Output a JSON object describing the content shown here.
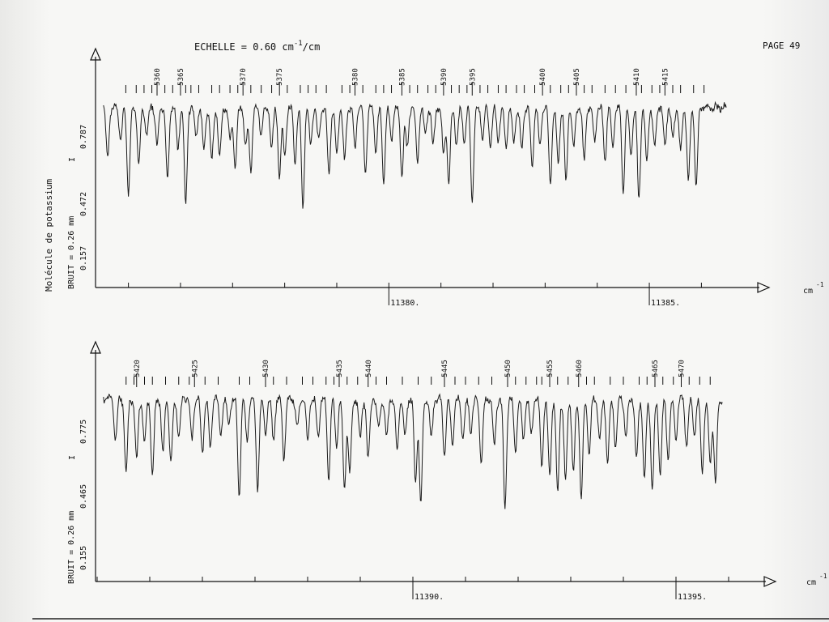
{
  "header": {
    "scale": "ECHELLE = 0.60 cm",
    "scale_sup": "-1",
    "scale_unit": "/cm",
    "page": "PAGE 49"
  },
  "side_note": "Molécule de potassium",
  "chart_data": [
    {
      "type": "line",
      "name": "panel-1",
      "ylabel": "I",
      "noise_label": "BRUIT = 0.26 mm",
      "yticks": [
        "0.157",
        "0.472",
        "0.787"
      ],
      "xlabel": "cm",
      "xlabel_sup": "-1",
      "xticks": [
        {
          "value": 11380,
          "label": "11380."
        },
        {
          "value": 11385,
          "label": "11385."
        }
      ],
      "xrange": [
        11374.4,
        11386.6
      ],
      "line_numbers": [
        {
          "label": "5360",
          "x": 11375.55
        },
        {
          "label": "5365",
          "x": 11376.0
        },
        {
          "label": "5370",
          "x": 11377.2
        },
        {
          "label": "5375",
          "x": 11377.9
        },
        {
          "label": "5380",
          "x": 11379.35
        },
        {
          "label": "5385",
          "x": 11380.25
        },
        {
          "label": "5390",
          "x": 11381.05
        },
        {
          "label": "5395",
          "x": 11381.6
        },
        {
          "label": "5400",
          "x": 11382.95
        },
        {
          "label": "5405",
          "x": 11383.6
        },
        {
          "label": "5410",
          "x": 11384.75
        },
        {
          "label": "5415",
          "x": 11385.3
        }
      ],
      "markers": [
        11374.95,
        11375.15,
        11375.3,
        11375.45,
        11375.7,
        11375.85,
        11376.1,
        11376.2,
        11376.35,
        11376.6,
        11376.75,
        11376.95,
        11377.1,
        11377.35,
        11377.55,
        11377.75,
        11378.05,
        11378.3,
        11378.45,
        11378.6,
        11378.8,
        11379.1,
        11379.25,
        11379.5,
        11379.75,
        11379.9,
        11380.05,
        11380.4,
        11380.55,
        11380.75,
        11380.9,
        11381.2,
        11381.35,
        11381.5,
        11381.75,
        11381.9,
        11382.1,
        11382.25,
        11382.45,
        11382.6,
        11382.8,
        11383.1,
        11383.3,
        11383.45,
        11383.75,
        11383.9,
        11384.15,
        11384.35,
        11384.55,
        11384.85,
        11385.05,
        11385.2,
        11385.45,
        11385.6,
        11385.85,
        11386.05
      ],
      "absorption_lines": [
        [
          11374.6,
          0.38
        ],
        [
          11374.85,
          0.25
        ],
        [
          11375.0,
          0.65
        ],
        [
          11375.2,
          0.42
        ],
        [
          11375.35,
          0.2
        ],
        [
          11375.55,
          0.28
        ],
        [
          11375.75,
          0.55
        ],
        [
          11375.95,
          0.32
        ],
        [
          11376.1,
          0.72
        ],
        [
          11376.3,
          0.22
        ],
        [
          11376.45,
          0.33
        ],
        [
          11376.6,
          0.4
        ],
        [
          11376.75,
          0.38
        ],
        [
          11376.95,
          0.25
        ],
        [
          11377.05,
          0.45
        ],
        [
          11377.25,
          0.3
        ],
        [
          11377.35,
          0.48
        ],
        [
          11377.55,
          0.2
        ],
        [
          11377.75,
          0.3
        ],
        [
          11377.9,
          0.52
        ],
        [
          11378.0,
          0.35
        ],
        [
          11378.2,
          0.42
        ],
        [
          11378.35,
          0.75
        ],
        [
          11378.5,
          0.28
        ],
        [
          11378.65,
          0.25
        ],
        [
          11378.85,
          0.5
        ],
        [
          11379.0,
          0.35
        ],
        [
          11379.15,
          0.4
        ],
        [
          11379.35,
          0.3
        ],
        [
          11379.55,
          0.48
        ],
        [
          11379.75,
          0.32
        ],
        [
          11379.9,
          0.55
        ],
        [
          11380.05,
          0.25
        ],
        [
          11380.25,
          0.5
        ],
        [
          11380.35,
          0.3
        ],
        [
          11380.55,
          0.42
        ],
        [
          11380.7,
          0.2
        ],
        [
          11380.85,
          0.28
        ],
        [
          11381.05,
          0.35
        ],
        [
          11381.15,
          0.58
        ],
        [
          11381.3,
          0.28
        ],
        [
          11381.45,
          0.25
        ],
        [
          11381.6,
          0.7
        ],
        [
          11381.8,
          0.22
        ],
        [
          11381.95,
          0.28
        ],
        [
          11382.1,
          0.25
        ],
        [
          11382.25,
          0.3
        ],
        [
          11382.4,
          0.26
        ],
        [
          11382.55,
          0.32
        ],
        [
          11382.75,
          0.45
        ],
        [
          11382.9,
          0.3
        ],
        [
          11383.1,
          0.58
        ],
        [
          11383.25,
          0.42
        ],
        [
          11383.4,
          0.55
        ],
        [
          11383.55,
          0.3
        ],
        [
          11383.75,
          0.4
        ],
        [
          11383.95,
          0.25
        ],
        [
          11384.15,
          0.4
        ],
        [
          11384.3,
          0.28
        ],
        [
          11384.5,
          0.62
        ],
        [
          11384.65,
          0.35
        ],
        [
          11384.8,
          0.68
        ],
        [
          11384.95,
          0.4
        ],
        [
          11385.1,
          0.3
        ],
        [
          11385.3,
          0.28
        ],
        [
          11385.45,
          0.22
        ],
        [
          11385.6,
          0.32
        ],
        [
          11385.75,
          0.55
        ],
        [
          11385.9,
          0.6
        ]
      ]
    },
    {
      "type": "line",
      "name": "panel-2",
      "ylabel": "I",
      "noise_label": "BRUIT = 0.26 mm",
      "yticks": [
        "0.155",
        "0.465",
        "0.775"
      ],
      "xlabel": "cm",
      "xlabel_sup": "-1",
      "xticks": [
        {
          "value": 11390,
          "label": "11390."
        },
        {
          "value": 11395,
          "label": "11395."
        }
      ],
      "xrange": [
        11384.0,
        11396.0
      ],
      "line_numbers": [
        {
          "label": "5420",
          "x": 11384.75
        },
        {
          "label": "5425",
          "x": 11385.85
        },
        {
          "label": "5430",
          "x": 11387.2
        },
        {
          "label": "5435",
          "x": 11388.6
        },
        {
          "label": "5440",
          "x": 11389.15
        },
        {
          "label": "5445",
          "x": 11390.6
        },
        {
          "label": "5450",
          "x": 11391.8
        },
        {
          "label": "5455",
          "x": 11392.6
        },
        {
          "label": "5460",
          "x": 11393.15
        },
        {
          "label": "5465",
          "x": 11394.6
        },
        {
          "label": "5470",
          "x": 11395.1
        }
      ],
      "markers": [
        11384.55,
        11384.7,
        11384.9,
        11385.05,
        11385.3,
        11385.55,
        11385.75,
        11386.05,
        11386.3,
        11386.7,
        11386.9,
        11387.35,
        11387.6,
        11387.9,
        11388.1,
        11388.35,
        11388.5,
        11388.75,
        11388.95,
        11389.3,
        11389.5,
        11389.8,
        11390.1,
        11390.35,
        11390.8,
        11391.0,
        11391.25,
        11391.5,
        11391.95,
        11392.15,
        11392.35,
        11392.45,
        11392.75,
        11392.95,
        11393.3,
        11393.45,
        11393.75,
        11394.0,
        11394.3,
        11394.45,
        11394.75,
        11394.95,
        11395.25,
        11395.45,
        11395.65
      ],
      "absorption_lines": [
        [
          11384.35,
          0.3
        ],
        [
          11384.55,
          0.55
        ],
        [
          11384.75,
          0.45
        ],
        [
          11384.9,
          0.32
        ],
        [
          11385.05,
          0.58
        ],
        [
          11385.25,
          0.4
        ],
        [
          11385.4,
          0.48
        ],
        [
          11385.55,
          0.28
        ],
        [
          11385.8,
          0.3
        ],
        [
          11386.0,
          0.4
        ],
        [
          11386.15,
          0.35
        ],
        [
          11386.35,
          0.25
        ],
        [
          11386.5,
          0.2
        ],
        [
          11386.7,
          0.72
        ],
        [
          11386.85,
          0.3
        ],
        [
          11387.05,
          0.68
        ],
        [
          11387.2,
          0.25
        ],
        [
          11387.35,
          0.3
        ],
        [
          11387.55,
          0.45
        ],
        [
          11387.8,
          0.22
        ],
        [
          11388.0,
          0.3
        ],
        [
          11388.2,
          0.28
        ],
        [
          11388.4,
          0.6
        ],
        [
          11388.55,
          0.35
        ],
        [
          11388.7,
          0.68
        ],
        [
          11388.8,
          0.55
        ],
        [
          11389.0,
          0.3
        ],
        [
          11389.15,
          0.45
        ],
        [
          11389.35,
          0.22
        ],
        [
          11389.5,
          0.3
        ],
        [
          11389.7,
          0.38
        ],
        [
          11389.85,
          0.28
        ],
        [
          11390.05,
          0.62
        ],
        [
          11390.15,
          0.78
        ],
        [
          11390.35,
          0.3
        ],
        [
          11390.6,
          0.42
        ],
        [
          11390.75,
          0.35
        ],
        [
          11390.95,
          0.3
        ],
        [
          11391.1,
          0.25
        ],
        [
          11391.3,
          0.48
        ],
        [
          11391.55,
          0.35
        ],
        [
          11391.75,
          0.82
        ],
        [
          11391.95,
          0.4
        ],
        [
          11392.1,
          0.3
        ],
        [
          11392.25,
          0.25
        ],
        [
          11392.45,
          0.5
        ],
        [
          11392.6,
          0.58
        ],
        [
          11392.75,
          0.7
        ],
        [
          11392.9,
          0.62
        ],
        [
          11393.05,
          0.55
        ],
        [
          11393.2,
          0.75
        ],
        [
          11393.35,
          0.4
        ],
        [
          11393.55,
          0.3
        ],
        [
          11393.7,
          0.48
        ],
        [
          11393.85,
          0.35
        ],
        [
          11394.05,
          0.28
        ],
        [
          11394.25,
          0.45
        ],
        [
          11394.4,
          0.6
        ],
        [
          11394.55,
          0.68
        ],
        [
          11394.7,
          0.55
        ],
        [
          11394.85,
          0.45
        ],
        [
          11395.0,
          0.3
        ],
        [
          11395.2,
          0.35
        ],
        [
          11395.35,
          0.28
        ],
        [
          11395.5,
          0.55
        ],
        [
          11395.65,
          0.48
        ],
        [
          11395.75,
          0.62
        ]
      ]
    }
  ]
}
